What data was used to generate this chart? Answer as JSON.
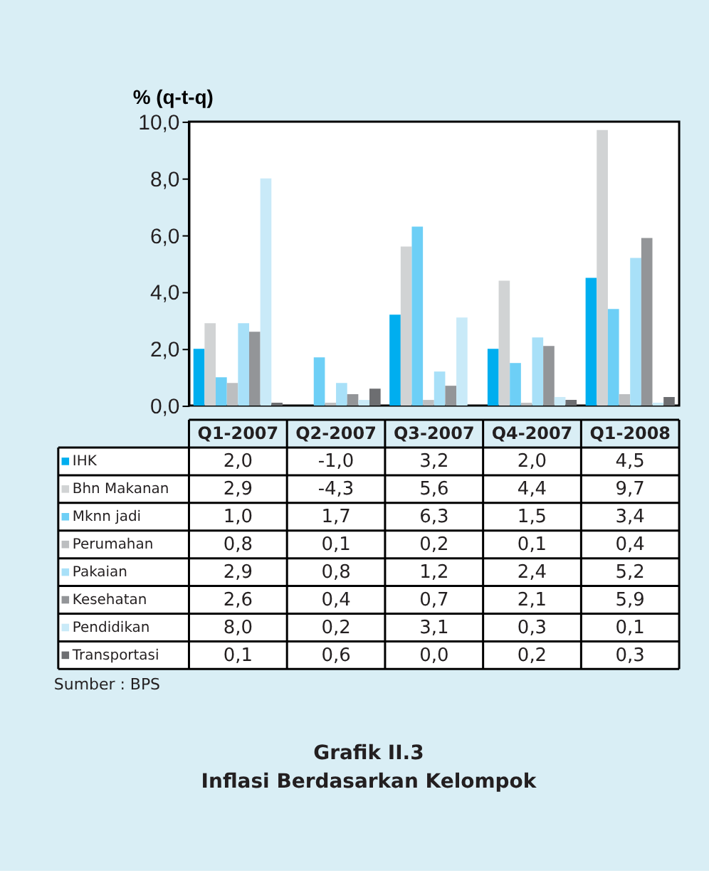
{
  "chart_data": {
    "type": "bar",
    "title": "Grafik II.3",
    "subtitle": "Inflasi Berdasarkan Kelompok",
    "ylabel": "% (q-t-q)",
    "annotations": [
      "Sumber : BPS"
    ],
    "categories": [
      "Q1-2007",
      "Q2-2007",
      "Q3-2007",
      "Q4-2007",
      "Q1-2008"
    ],
    "series": [
      {
        "name": "IHK",
        "color": "#00aeef",
        "values": [
          2.0,
          null,
          3.2,
          2.0,
          4.5
        ],
        "value_labels": [
          "2,0",
          "-1,0",
          "3,2",
          "2,0",
          "4,5"
        ]
      },
      {
        "name": "Bhn Makanan",
        "color": "#d1d3d4",
        "values": [
          2.9,
          null,
          5.6,
          4.4,
          9.7
        ],
        "value_labels": [
          "2,9",
          "-4,3",
          "5,6",
          "4,4",
          "9,7"
        ]
      },
      {
        "name": "Mknn jadi",
        "color": "#6dcff6",
        "values": [
          1.0,
          1.7,
          6.3,
          1.5,
          3.4
        ],
        "value_labels": [
          "1,0",
          "1,7",
          "6,3",
          "1,5",
          "3,4"
        ]
      },
      {
        "name": "Perumahan",
        "color": "#bcbec0",
        "values": [
          0.8,
          0.1,
          0.2,
          0.1,
          0.4
        ],
        "value_labels": [
          "0,8",
          "0,1",
          "0,2",
          "0,1",
          "0,4"
        ]
      },
      {
        "name": "Pakaian",
        "color": "#a8e0f8",
        "values": [
          2.9,
          0.8,
          1.2,
          2.4,
          5.2
        ],
        "value_labels": [
          "2,9",
          "0,8",
          "1,2",
          "2,4",
          "5,2"
        ]
      },
      {
        "name": "Kesehatan",
        "color": "#939598",
        "values": [
          2.6,
          0.4,
          0.7,
          2.1,
          5.9
        ],
        "value_labels": [
          "2,6",
          "0,4",
          "0,7",
          "2,1",
          "5,9"
        ]
      },
      {
        "name": "Pendidikan",
        "color": "#c9eaf8",
        "values": [
          8.0,
          0.2,
          3.1,
          0.3,
          0.1
        ],
        "value_labels": [
          "8,0",
          "0,2",
          "3,1",
          "0,3",
          "0,1"
        ]
      },
      {
        "name": "Transportasi",
        "color": "#6d6e71",
        "values": [
          0.1,
          0.6,
          0.0,
          0.2,
          0.3
        ],
        "value_labels": [
          "0,1",
          "0,6",
          "0,0",
          "0,2",
          "0,3"
        ]
      }
    ],
    "ylim": [
      0,
      10
    ],
    "yticks": [
      {
        "value": 0,
        "label": "0,0"
      },
      {
        "value": 2,
        "label": "2,0"
      },
      {
        "value": 4,
        "label": "4,0"
      },
      {
        "value": 6,
        "label": "6,0"
      },
      {
        "value": 8,
        "label": "8,0"
      },
      {
        "value": 10,
        "label": "10,0"
      }
    ],
    "grid": false,
    "legend": "bottom left"
  }
}
